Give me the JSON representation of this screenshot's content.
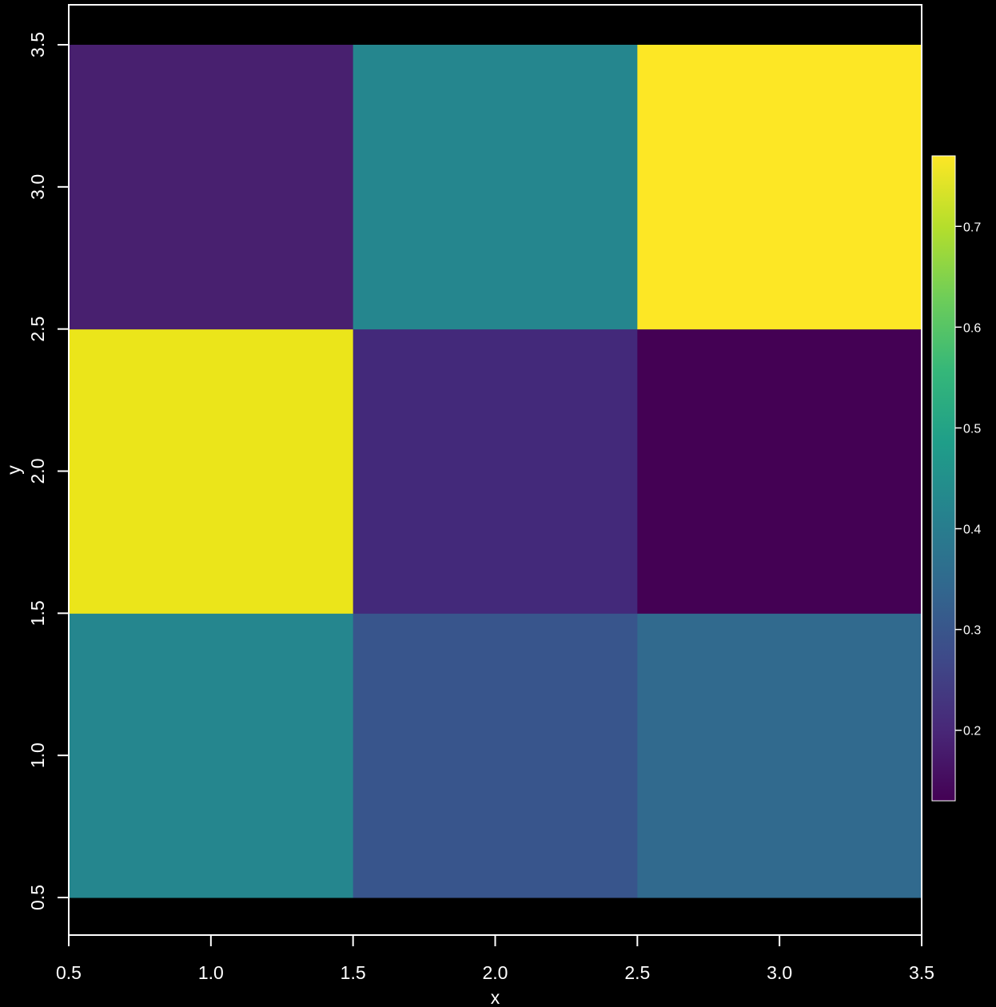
{
  "chart_data": {
    "type": "heatmap",
    "title": "",
    "xlabel": "x",
    "ylabel": "y",
    "xlim": [
      0.5,
      3.5
    ],
    "ylim": [
      0.5,
      3.5
    ],
    "x_ticks": [
      "0.5",
      "1.0",
      "1.5",
      "2.0",
      "2.5",
      "3.0",
      "3.5"
    ],
    "y_ticks": [
      "0.5",
      "1.0",
      "1.5",
      "2.0",
      "2.5",
      "3.0",
      "3.5"
    ],
    "x": [
      1,
      2,
      3
    ],
    "y": [
      1,
      2,
      3
    ],
    "cells": [
      {
        "x": 1,
        "y": 1,
        "value": 0.46,
        "color": "#25868E"
      },
      {
        "x": 2,
        "y": 1,
        "value": 0.28,
        "color": "#38558C"
      },
      {
        "x": 3,
        "y": 1,
        "value": 0.36,
        "color": "#316A8E"
      },
      {
        "x": 1,
        "y": 2,
        "value": 0.76,
        "color": "#EBE51A"
      },
      {
        "x": 2,
        "y": 2,
        "value": 0.19,
        "color": "#43297A"
      },
      {
        "x": 3,
        "y": 2,
        "value": 0.13,
        "color": "#440154"
      },
      {
        "x": 1,
        "y": 3,
        "value": 0.17,
        "color": "#48206F"
      },
      {
        "x": 2,
        "y": 3,
        "value": 0.46,
        "color": "#25868E"
      },
      {
        "x": 3,
        "y": 3,
        "value": 0.77,
        "color": "#FDE725"
      }
    ],
    "colorbar": {
      "range": [
        0.13,
        0.77
      ],
      "ticks": [
        0.2,
        0.3,
        0.4,
        0.5,
        0.6,
        0.7
      ],
      "tick_labels": [
        "0.2",
        "0.3",
        "0.4",
        "0.5",
        "0.6",
        "0.7"
      ],
      "colors": [
        "#440154",
        "#482878",
        "#3E4A89",
        "#31688E",
        "#26828E",
        "#1F9E89",
        "#35B779",
        "#6DCD59",
        "#B4DE2C",
        "#FDE725"
      ],
      "placement": "right"
    },
    "grid": false,
    "background": "#000000",
    "axis_color": "#ffffff"
  }
}
